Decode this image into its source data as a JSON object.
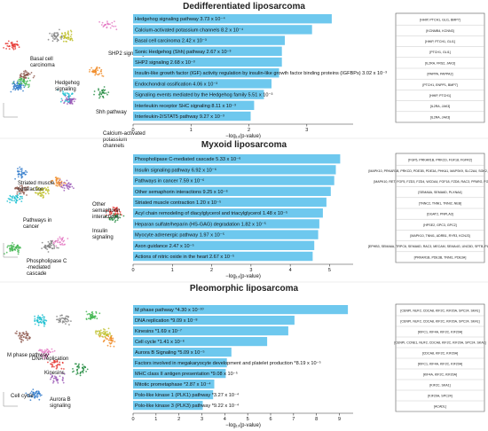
{
  "panels": [
    {
      "title": "Dedifferentiated liposarcoma",
      "xlabel": "−log₁₀(p-value)",
      "ticks": [
        0,
        1,
        2,
        3
      ],
      "xlim": [
        0,
        3.8
      ],
      "umap_labels": [
        "Basal cell carcinoma",
        "Hedgehog signaling",
        "SHP2 signaling",
        "Shh pathway",
        "Calcium-activated potassium channels"
      ],
      "bars": [
        {
          "label": "Hedgehog signaling pathway  3.73 x 10⁻⁴",
          "value": 3.43,
          "genes": "[HHIP, PTCH1, GLI1, BMP7]"
        },
        {
          "label": "Calcium-activated potassium channels  8.2 x 10⁻⁴",
          "value": 3.09,
          "genes": "[KCNMB4, KCNN3]"
        },
        {
          "label": "Basal cell carcinoma  2.42 x 10⁻³",
          "value": 2.62,
          "genes": "[HHIP, PTCH1, GLI1]"
        },
        {
          "label": "Sonic Hedgehog (Shh) pathway  2.67 x 10⁻³",
          "value": 2.57,
          "genes": "[PTCH1, GLI1]"
        },
        {
          "label": "SHP2 signaling  2.68 x 10⁻³",
          "value": 2.57,
          "genes": "[IL2RA, FRS2, JAK3]"
        },
        {
          "label": "Insulin-like growth factor (IGF) activity regulation by insulin-like growth factor binding proteins (IGFBPs)  3.02 x 10⁻³",
          "value": 2.52,
          "genes": "[PAPPA, PAPPA2]"
        },
        {
          "label": "Endochondral ossification  4.06 x 10⁻³",
          "value": 2.39,
          "genes": "[PTCH1, ENPP1, BMP7]"
        },
        {
          "label": "Signaling events mediated by the Hedgehog family  5.51 x 10⁻³",
          "value": 2.26,
          "genes": "[HHIP, PTCH1]"
        },
        {
          "label": "Interleukin receptor SHC signaling  8.11 x 10⁻³",
          "value": 2.09,
          "genes": "[IL2RA, JAK3]"
        },
        {
          "label": "Interleukin-2/STAT5 pathway  9.27 x 10⁻³",
          "value": 2.03,
          "genes": "[IL2RA, JAK3]"
        }
      ]
    },
    {
      "title": "Myxoid liposarcoma",
      "xlabel": "−log₁₀(p-value)",
      "ticks": [
        0,
        1,
        2,
        3,
        4,
        5
      ],
      "xlim": [
        0,
        5.6
      ],
      "umap_labels": [
        "Striated muscle contraction",
        "Other semaphorin interactions",
        "Pathways in cancer",
        "Insulin signaling",
        "Phospholipase C -mediated cascade"
      ],
      "bars": [
        {
          "label": "Phospholipase C-mediated cascade  5.33 x 10⁻⁶",
          "value": 5.27,
          "genes": "[FGF5, PRKAR1B, PRKCD, FGF18, FGFR2]"
        },
        {
          "label": "Insulin signaling pathway  6.92 x 10⁻⁶",
          "value": 5.16,
          "genes": "[MAPK10, PRKAR1B, PRKCD, PDE3B, PDE3A, PHKA1, MAPSK9, SLC2A4, SGK2, ACACB, IGF1R]"
        },
        {
          "label": "Pathways in cancer  7.59 x 10⁻⁶",
          "value": 5.12,
          "genes": "[MAPK10, RET, FGF5, FZD3, FZD4, WCDA4, FGF18, FZD8, RAC3, PPARG, FGFR2, IGF1R]"
        },
        {
          "label": "Other semaphorin interactions  9.25 x 10⁻⁶",
          "value": 5.03,
          "genes": "[SEMA6A, SEMA6D, PLXNA4]"
        },
        {
          "label": "Striated muscle contraction  1.20 x 10⁻⁵",
          "value": 4.92,
          "genes": "[TNNC2, TNNI1, TNNI2, NEB]"
        },
        {
          "label": "Acyl chain remodeling of diacylglycerol and triacylglycerol  1.48 x 10⁻⁵",
          "value": 4.83,
          "genes": "[DGAT2, PNPLA3]"
        },
        {
          "label": "Heparan sulfate/heparin (HS-GAG) degradation  1.82 x 10⁻⁵",
          "value": 4.74,
          "genes": "[HPSE2, GPC3, GPC2]"
        },
        {
          "label": "Myocyte adrenergic pathway  1.97 x 10⁻⁵",
          "value": 4.71,
          "genes": "[MAPK10, TNNI1, ADRB1, RYR3, KCNJ3]"
        },
        {
          "label": "Axon guidance  2.47 x 10⁻⁵",
          "value": 4.61,
          "genes": "[EPHB3, SEMA6A, TRPC6, SEMA6D, RAC3, MECAM, SEMA4G, UNC5D, SPTB, PLXNA4, SPTBN2]"
        },
        {
          "label": "Actions of nitric oxide in the heart  2.67 x 10⁻⁵",
          "value": 4.57,
          "genes": "[PRKAR1B, PDE3B, TNNI1, PDE3A]"
        }
      ]
    },
    {
      "title": "Pleomorphic liposarcoma",
      "xlabel": "−log₁₀(p-value)",
      "ticks": [
        0,
        1,
        2,
        3,
        4,
        5,
        6,
        7,
        8,
        9
      ],
      "xlim": [
        0,
        9.6
      ],
      "umap_labels": [
        "M phase pathway",
        "DNA replication",
        "Kinesins",
        "Cell cycle",
        "Aurora B signaling"
      ],
      "bars": [
        {
          "label": "M phase pathway  *4.30 x 10⁻¹⁰",
          "value": 9.37,
          "genes": "[CENPI, NUF2, CDCA8, KIF2C, KIF20A, SPC24, SKA1]"
        },
        {
          "label": "DNA replication  *9.09 x 10⁻⁸",
          "value": 7.04,
          "genes": "[CENPI, NUF2, CDCA8, KIF2C, KIF20A, SPC24, SKA1]"
        },
        {
          "label": "Kinesins  *1.69 x 10⁻⁷",
          "value": 6.77,
          "genes": "[KIFC1, KIF4A, KIF2C, KIF20A]"
        },
        {
          "label": "Cell cycle  *1.41 x 10⁻⁶",
          "value": 5.85,
          "genes": "[CENPI, CCNE1, NUF2, CDCA8, KIF2C, KIF20A, SPC24, SKA1]"
        },
        {
          "label": "Aurora B Signaling  *5.09 x 10⁻⁵",
          "value": 4.29,
          "genes": "[CDCA8, KIF2C, KIF20A]"
        },
        {
          "label": "Factors involved in megakaryocyte development and platelet production  *8.19 x 10⁻⁵",
          "value": 4.09,
          "genes": "[KIFC1, KIF4A, KIF2C, KIF20A]"
        },
        {
          "label": "MHC class II antigen presentation  *9.08 x 10⁻⁵",
          "value": 4.04,
          "genes": "[KIF4A, KIF2C, KIF20A]"
        },
        {
          "label": "Mitotic prometaphase  *2.87 x 10⁻⁴",
          "value": 3.54,
          "genes": "[KIF2C, SKA1]"
        },
        {
          "label": "Polo-like kinase 1 (PLK1) pathway  *3.27 x 10⁻⁴",
          "value": 3.49,
          "genes": "[KIF20A, SPC24]"
        },
        {
          "label": "Polo-like kinase 3 (PLK3) pathway  *9.22 x 10⁻⁴",
          "value": 3.04,
          "genes": "[ACADL]"
        }
      ]
    }
  ],
  "chart_data": [
    {
      "type": "bar",
      "orientation": "horizontal",
      "title": "Dedifferentiated liposarcoma",
      "xlabel": "−log₁₀(p-value)",
      "xlim": [
        0,
        3.8
      ],
      "categories": [
        "Hedgehog signaling pathway",
        "Calcium-activated potassium channels",
        "Basal cell carcinoma",
        "Sonic Hedgehog (Shh) pathway",
        "SHP2 signaling",
        "Insulin-like growth factor (IGF) activity regulation by insulin-like growth factor binding proteins (IGFBPs)",
        "Endochondral ossification",
        "Signaling events mediated by the Hedgehog family",
        "Interleukin receptor SHC signaling",
        "Interleukin-2/STAT5 pathway"
      ],
      "values": [
        3.43,
        3.09,
        2.62,
        2.57,
        2.57,
        2.52,
        2.39,
        2.26,
        2.09,
        2.03
      ]
    },
    {
      "type": "bar",
      "orientation": "horizontal",
      "title": "Myxoid liposarcoma",
      "xlabel": "−log₁₀(p-value)",
      "xlim": [
        0,
        5.6
      ],
      "categories": [
        "Phospholipase C-mediated cascade",
        "Insulin signaling pathway",
        "Pathways in cancer",
        "Other semaphorin interactions",
        "Striated muscle contraction",
        "Acyl chain remodeling of diacylglycerol and triacylglycerol",
        "Heparan sulfate/heparin (HS-GAG) degradation",
        "Myocyte adrenergic pathway",
        "Axon guidance",
        "Actions of nitric oxide in the heart"
      ],
      "values": [
        5.27,
        5.16,
        5.12,
        5.03,
        4.92,
        4.83,
        4.74,
        4.71,
        4.61,
        4.57
      ]
    },
    {
      "type": "bar",
      "orientation": "horizontal",
      "title": "Pleomorphic liposarcoma",
      "xlabel": "−log₁₀(p-value)",
      "xlim": [
        0,
        9.6
      ],
      "categories": [
        "M phase pathway",
        "DNA replication",
        "Kinesins",
        "Cell cycle",
        "Aurora B Signaling",
        "Factors involved in megakaryocyte development and platelet production",
        "MHC class II antigen presentation",
        "Mitotic prometaphase",
        "Polo-like kinase 1 (PLK1) pathway",
        "Polo-like kinase 3 (PLK3) pathway"
      ],
      "values": [
        9.37,
        7.04,
        6.77,
        5.85,
        4.29,
        4.09,
        4.04,
        3.54,
        3.49,
        3.04
      ]
    }
  ],
  "colors": {
    "bar": "#6ec8ee",
    "title": "#222222",
    "text": "#111111",
    "box_border": "#555555"
  }
}
